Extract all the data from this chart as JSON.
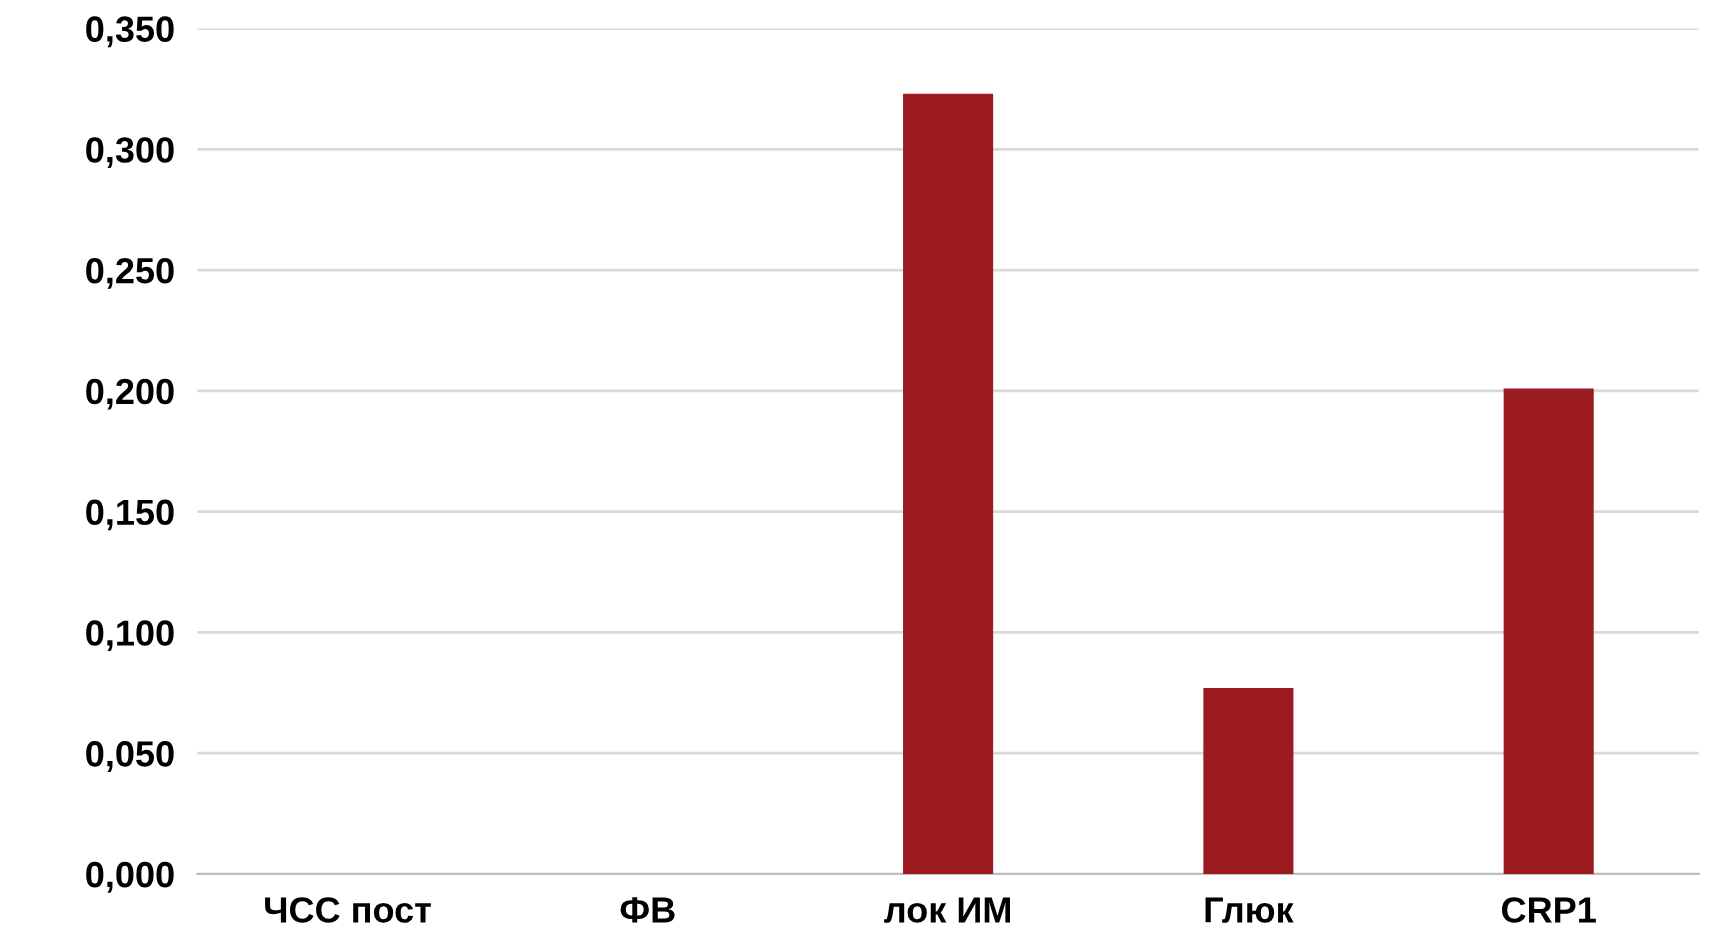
{
  "chart_data": {
    "type": "bar",
    "categories": [
      "ЧСС пост",
      "ФВ",
      "лок ИМ",
      "Глюк",
      "CRP1"
    ],
    "values": [
      0,
      0,
      0.323,
      0.077,
      0.201
    ],
    "color": "#9b1b20",
    "ylim": [
      0,
      0.35
    ],
    "yticks": [
      {
        "value": 0,
        "label": "0,000"
      },
      {
        "value": 0.05,
        "label": "0,050"
      },
      {
        "value": 0.1,
        "label": "0,100"
      },
      {
        "value": 0.15,
        "label": "0,150"
      },
      {
        "value": 0.2,
        "label": "0,200"
      },
      {
        "value": 0.25,
        "label": "0,250"
      },
      {
        "value": 0.3,
        "label": "0,300"
      },
      {
        "value": 0.35,
        "label": "0,350"
      }
    ],
    "grid": "y"
  }
}
